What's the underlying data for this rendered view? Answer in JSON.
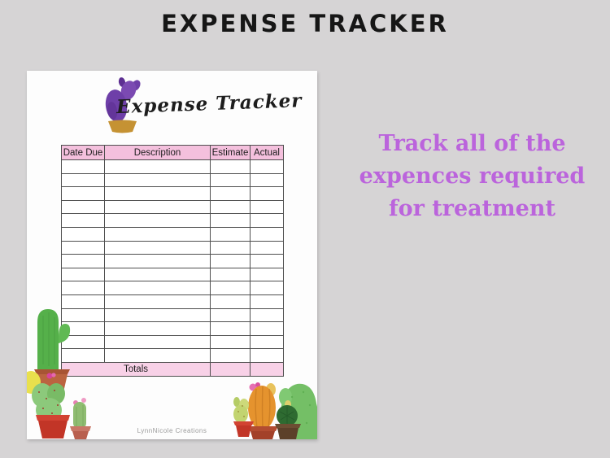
{
  "title": "EXPENSE TRACKER",
  "document": {
    "logo": {
      "text": "Expense Tracker"
    },
    "table": {
      "headers": [
        "Date Due",
        "Description",
        "Estimate",
        "Actual"
      ],
      "empty_row_count": 15,
      "totals_label": "Totals"
    },
    "credit": "LynnNicole Creations"
  },
  "tagline": {
    "lines": [
      "Track all of the",
      "expences required",
      "for treatment"
    ]
  },
  "colors": {
    "background": "#d6d4d5",
    "page": "#fdfdfd",
    "header_pink": "#f4c0dd",
    "totals_pink": "#f8d1e7",
    "grid_line": "#4f4f4f",
    "tagline_purple": "#bb64dc",
    "logo_purple": "#6e3fa8",
    "pot_gold": "#c59233"
  }
}
